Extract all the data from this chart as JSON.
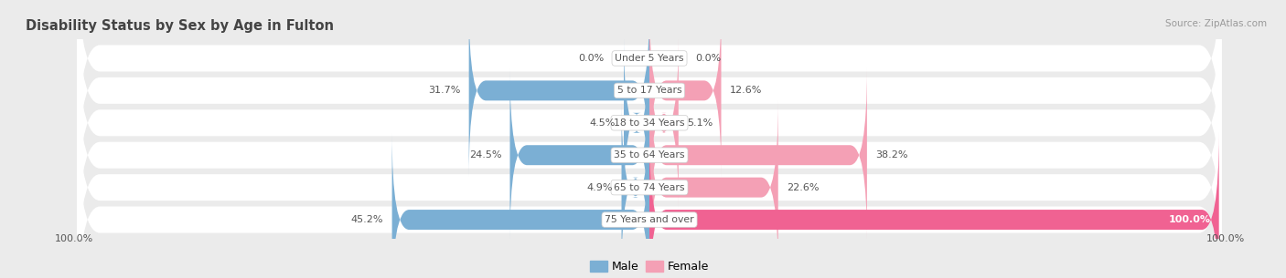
{
  "title": "Disability Status by Sex by Age in Fulton",
  "source": "Source: ZipAtlas.com",
  "categories": [
    "Under 5 Years",
    "5 to 17 Years",
    "18 to 34 Years",
    "35 to 64 Years",
    "65 to 74 Years",
    "75 Years and over"
  ],
  "male_values": [
    0.0,
    31.7,
    4.5,
    24.5,
    4.9,
    45.2
  ],
  "female_values": [
    0.0,
    12.6,
    5.1,
    38.2,
    22.6,
    100.0
  ],
  "male_color": "#7bafd4",
  "female_color": "#f4a0b5",
  "female_color_full": "#f06292",
  "male_label": "Male",
  "female_label": "Female",
  "max_val": 100.0,
  "bg_color": "#ebebeb",
  "row_bg_color": "#f5f5f5",
  "label_color": "#555555",
  "title_color": "#444444",
  "axis_label_left": "100.0%",
  "axis_label_right": "100.0%"
}
